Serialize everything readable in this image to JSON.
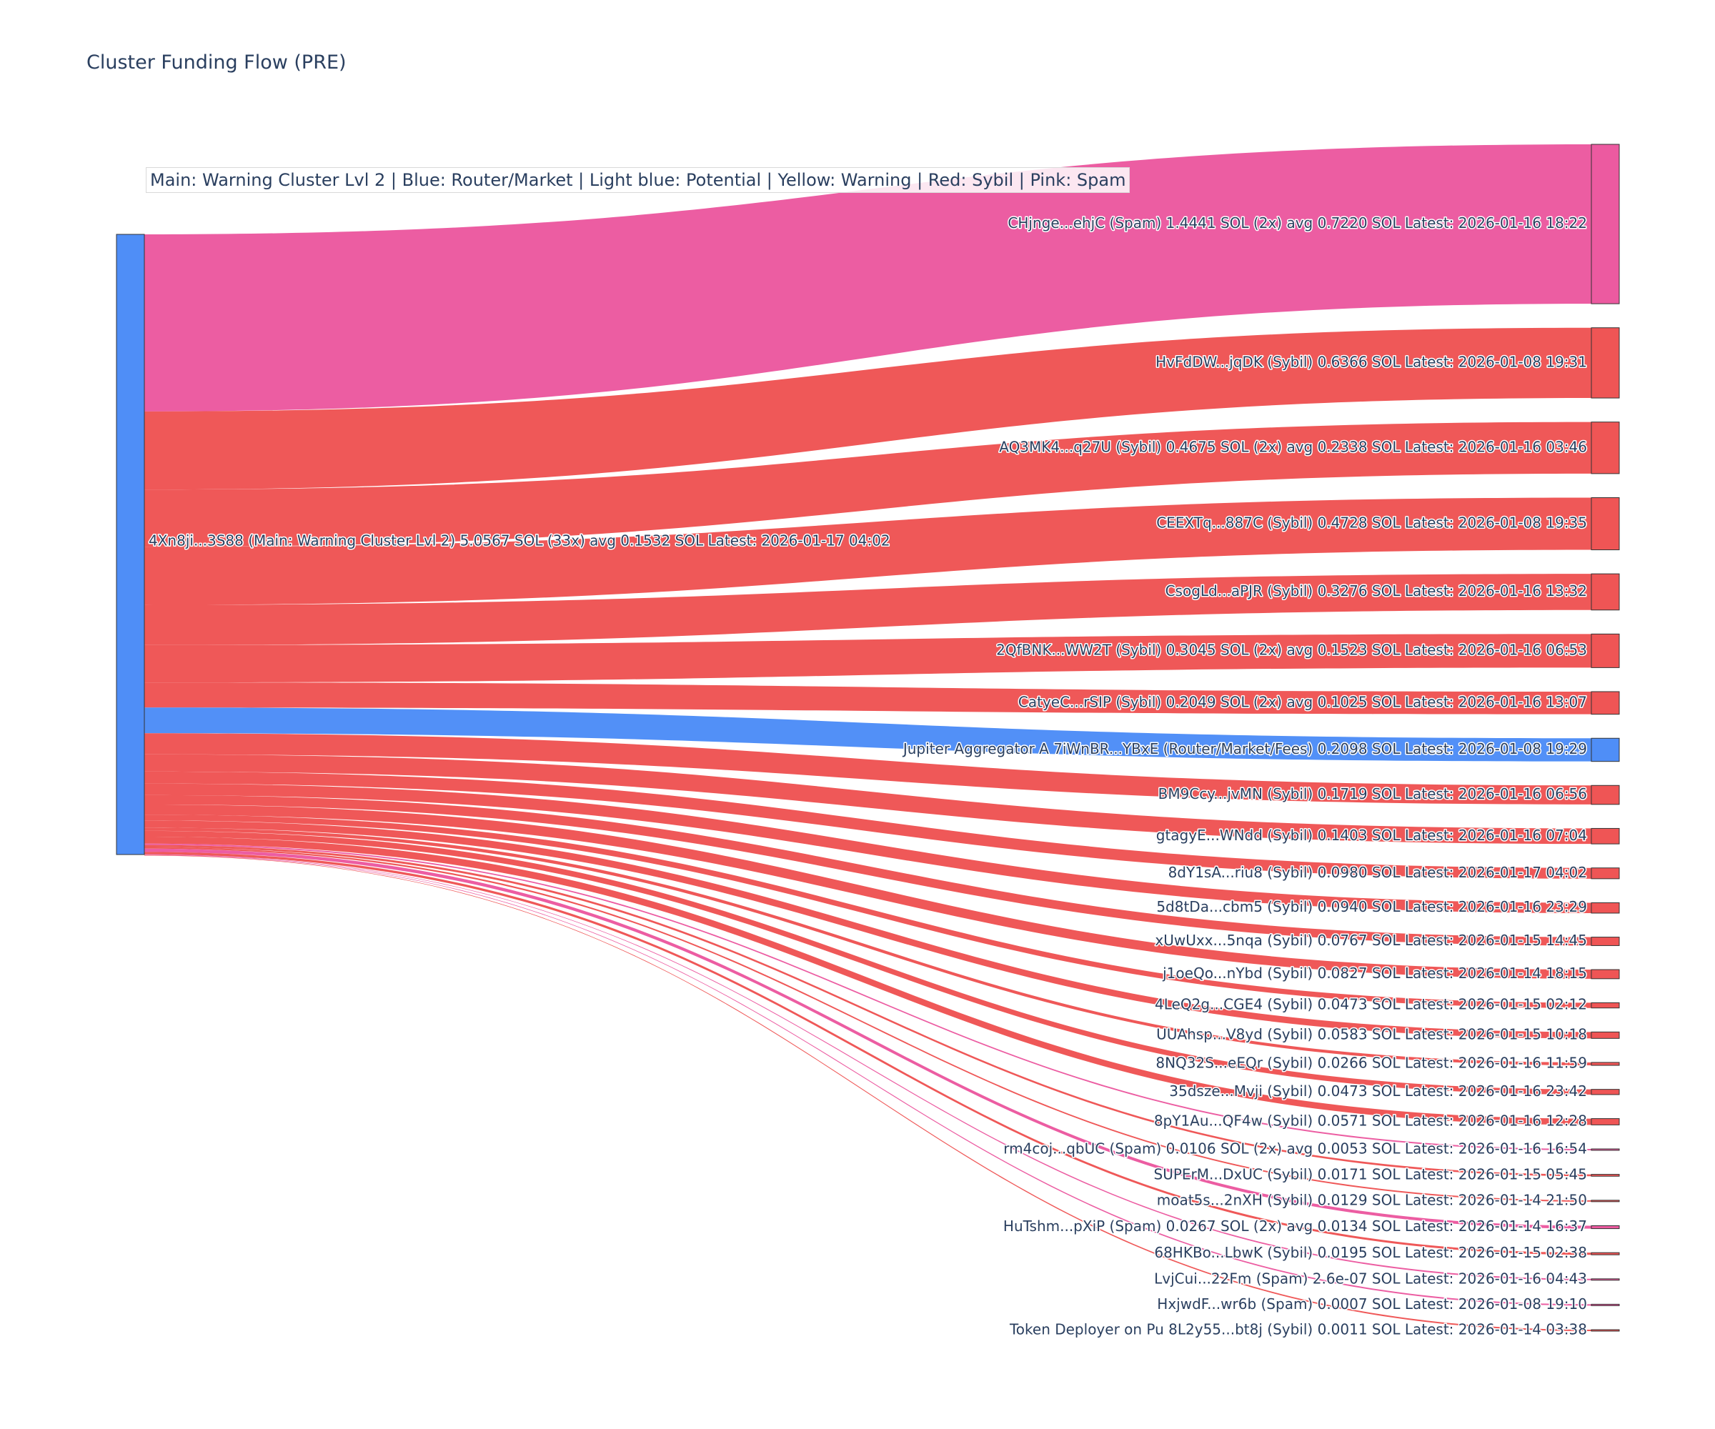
{
  "chart_data": {
    "type": "sankey",
    "title": "Cluster Funding Flow (PRE)",
    "legend": "Main: Warning Cluster Lvl 2  |  Blue: Router/Market | Light blue: Potential | Yellow: Warning | Red: Sybil | Pink: Spam",
    "colors": {
      "router": "#4f8ef7",
      "sybil": "#ef5555",
      "spam": "#ec5aa0",
      "node_border": "#333333"
    },
    "source": {
      "label": "4Xn8ji...3S88 (Main: Warning Cluster Lvl 2) 5.0567 SOL (33x) avg 0.1532 SOL Latest: 2026-01-17 04:02",
      "category": "router"
    },
    "targets": [
      {
        "label": "CHjnge...ehjC (Spam) 1.4441 SOL (2x) avg 0.7220 SOL Latest: 2026-01-16 18:22",
        "value": 1.4441,
        "category": "spam"
      },
      {
        "label": "HvFdDW...jqDK (Sybil) 0.6366 SOL Latest: 2026-01-08 19:31",
        "value": 0.6366,
        "category": "sybil"
      },
      {
        "label": "AQ3MK4...q27U (Sybil) 0.4675 SOL (2x) avg 0.2338 SOL Latest: 2026-01-16 03:46",
        "value": 0.4675,
        "category": "sybil"
      },
      {
        "label": "CEEXTq...887C (Sybil) 0.4728 SOL Latest: 2026-01-08 19:35",
        "value": 0.4728,
        "category": "sybil"
      },
      {
        "label": "CsogLd...aPJR (Sybil) 0.3276 SOL Latest: 2026-01-16 13:32",
        "value": 0.3276,
        "category": "sybil"
      },
      {
        "label": "2QfBNK...WW2T (Sybil) 0.3045 SOL (2x) avg 0.1523 SOL Latest: 2026-01-16 06:53",
        "value": 0.3045,
        "category": "sybil"
      },
      {
        "label": "CatyeC...rSIP (Sybil) 0.2049 SOL (2x) avg 0.1025 SOL Latest: 2026-01-16 13:07",
        "value": 0.2049,
        "category": "sybil"
      },
      {
        "label": "Jupiter Aggregator A 7iWnBR...YBxE (Router/Market/Fees) 0.2098 SOL Latest: 2026-01-08 19:29",
        "value": 0.2098,
        "category": "router"
      },
      {
        "label": "BM9Ccy...jvMN (Sybil) 0.1719 SOL Latest: 2026-01-16 06:56",
        "value": 0.1719,
        "category": "sybil"
      },
      {
        "label": "gtagyE...WNdd (Sybil) 0.1403 SOL Latest: 2026-01-16 07:04",
        "value": 0.1403,
        "category": "sybil"
      },
      {
        "label": "8dY1sA...riu8 (Sybil) 0.0980 SOL Latest: 2026-01-17 04:02",
        "value": 0.098,
        "category": "sybil"
      },
      {
        "label": "5d8tDa...cbm5 (Sybil) 0.0940 SOL Latest: 2026-01-16 23:29",
        "value": 0.094,
        "category": "sybil"
      },
      {
        "label": "xUwUxx...5nqa (Sybil) 0.0767 SOL Latest: 2026-01-15 14:45",
        "value": 0.0767,
        "category": "sybil"
      },
      {
        "label": "j1oeQo...nYbd (Sybil) 0.0827 SOL Latest: 2026-01-14 18:15",
        "value": 0.0827,
        "category": "sybil"
      },
      {
        "label": "4LeQ2g...CGE4 (Sybil) 0.0473 SOL Latest: 2026-01-15 02:12",
        "value": 0.0473,
        "category": "sybil"
      },
      {
        "label": "UUAhsp...V8yd (Sybil) 0.0583 SOL Latest: 2026-01-15 10:18",
        "value": 0.0583,
        "category": "sybil"
      },
      {
        "label": "8NQ32S...eEQr (Sybil) 0.0266 SOL Latest: 2026-01-16 11:59",
        "value": 0.0266,
        "category": "sybil"
      },
      {
        "label": "35dsze...Mvji (Sybil) 0.0473 SOL Latest: 2026-01-16 23:42",
        "value": 0.0473,
        "category": "sybil"
      },
      {
        "label": "8pY1Au...QF4w (Sybil) 0.0571 SOL Latest: 2026-01-16 12:28",
        "value": 0.0571,
        "category": "sybil"
      },
      {
        "label": "rm4coj...qbUC (Spam) 0.0106 SOL (2x) avg 0.0053 SOL Latest: 2026-01-16 16:54",
        "value": 0.0106,
        "category": "spam"
      },
      {
        "label": "SUPErM...DxUC (Sybil) 0.0171 SOL Latest: 2026-01-15 05:45",
        "value": 0.0171,
        "category": "sybil"
      },
      {
        "label": "moat5s...2nXH (Sybil) 0.0129 SOL Latest: 2026-01-14 21:50",
        "value": 0.0129,
        "category": "sybil"
      },
      {
        "label": "HuTshm...pXiP (Spam) 0.0267 SOL (2x) avg 0.0134 SOL Latest: 2026-01-14 16:37",
        "value": 0.0267,
        "category": "spam"
      },
      {
        "label": "68HKBo...LbwK (Sybil) 0.0195 SOL Latest: 2026-01-15 02:38",
        "value": 0.0195,
        "category": "sybil"
      },
      {
        "label": "LvjCui...22Fm (Spam) 2.6e-07 SOL Latest: 2026-01-16 04:43",
        "value": 2.6e-07,
        "category": "spam"
      },
      {
        "label": "HxjwdF...wr6b (Spam) 0.0007 SOL Latest: 2026-01-08 19:10",
        "value": 0.0007,
        "category": "spam"
      },
      {
        "label": "Token Deployer on Pu 8L2y55...bt8j (Sybil) 0.0011 SOL Latest: 2026-01-14 03:38",
        "value": 0.0011,
        "category": "sybil"
      }
    ]
  }
}
